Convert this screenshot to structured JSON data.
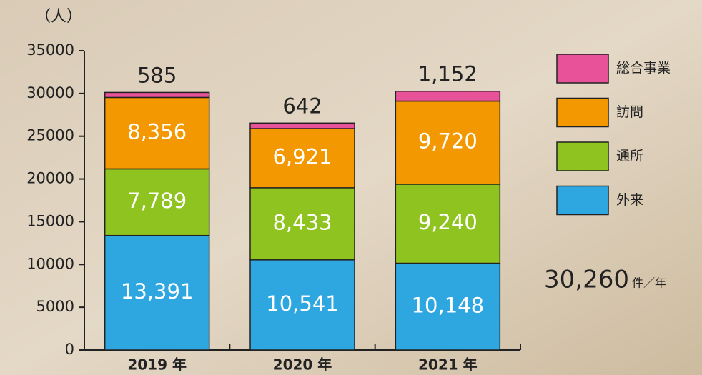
{
  "chart_data": {
    "type": "stacked_bar",
    "y_label": "（人）",
    "categories": [
      "2019 年",
      "2020 年",
      "2021 年"
    ],
    "series": [
      {
        "name": "外来",
        "color": "#2ea7e0",
        "values": [
          13391,
          10541,
          10148
        ],
        "value_labels": [
          "13,391",
          "10,541",
          "10,148"
        ]
      },
      {
        "name": "通所",
        "color": "#8fc31f",
        "values": [
          7789,
          8433,
          9240
        ],
        "value_labels": [
          "7,789",
          "8,433",
          "9,240"
        ]
      },
      {
        "name": "訪問",
        "color": "#f39800",
        "values": [
          8356,
          6921,
          9720
        ],
        "value_labels": [
          "8,356",
          "6,921",
          "9,720"
        ]
      },
      {
        "name": "総合事業",
        "color": "#e85298",
        "values": [
          585,
          642,
          1152
        ],
        "value_labels": [
          "585",
          "642",
          "1,152"
        ]
      }
    ],
    "ylim": [
      0,
      35000
    ],
    "yticks": [
      0,
      5000,
      10000,
      15000,
      20000,
      25000,
      30000,
      35000
    ],
    "annotation": {
      "value": "30,260",
      "unit": "件／年"
    }
  }
}
